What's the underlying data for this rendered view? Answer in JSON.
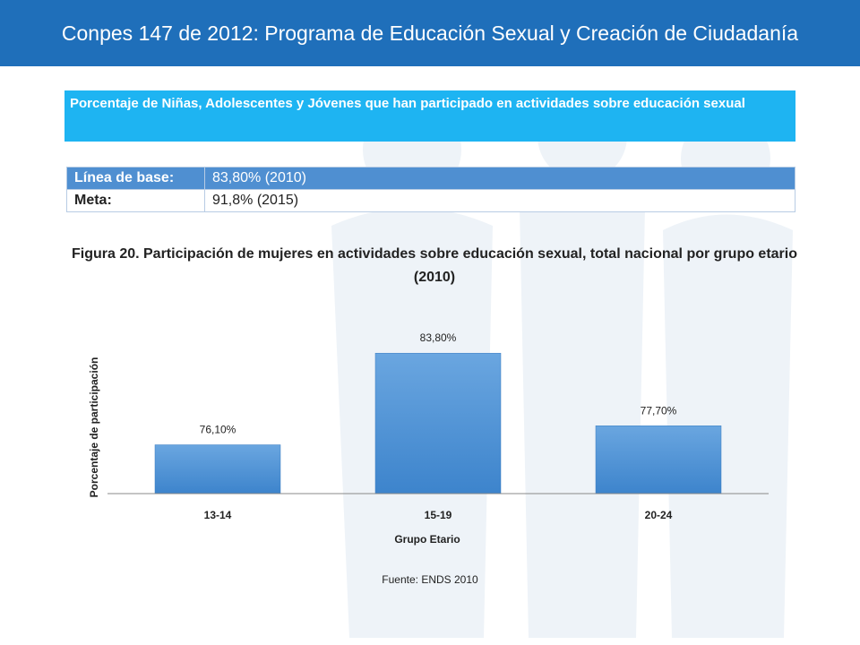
{
  "header": {
    "title": "Conpes 147 de 2012: Programa de Educación Sexual y Creación de Ciudadanía"
  },
  "indicator": {
    "text": "Porcentaje de Niñas, Adolescentes y Jóvenes que han participado en actividades sobre educación sexual"
  },
  "metrics": {
    "baseline_label": "Línea de base:",
    "baseline_value": "83,80% (2010)",
    "goal_label": "Meta:",
    "goal_value": "91,8% (2015)"
  },
  "figure": {
    "caption": "Figura 20. Participación de mujeres en actividades sobre educación sexual, total nacional por grupo etario (2010)",
    "source": "Fuente: ENDS 2010"
  },
  "colors": {
    "header_bg": "#1f6fba",
    "indicator_bg": "#1eb4f2",
    "bar_top": "#6aa6e0",
    "bar_bottom": "#3d84cc"
  },
  "chart_data": {
    "type": "bar",
    "categories": [
      "13-14",
      "15-19",
      "20-24"
    ],
    "values": [
      76.1,
      83.8,
      77.7
    ],
    "data_labels": [
      "76,10%",
      "83,80%",
      "77,70%"
    ],
    "xlabel": "Grupo Etario",
    "ylabel": "Porcentaje de participación",
    "ylim": [
      72,
      86
    ],
    "grid": false,
    "legend": "none"
  }
}
